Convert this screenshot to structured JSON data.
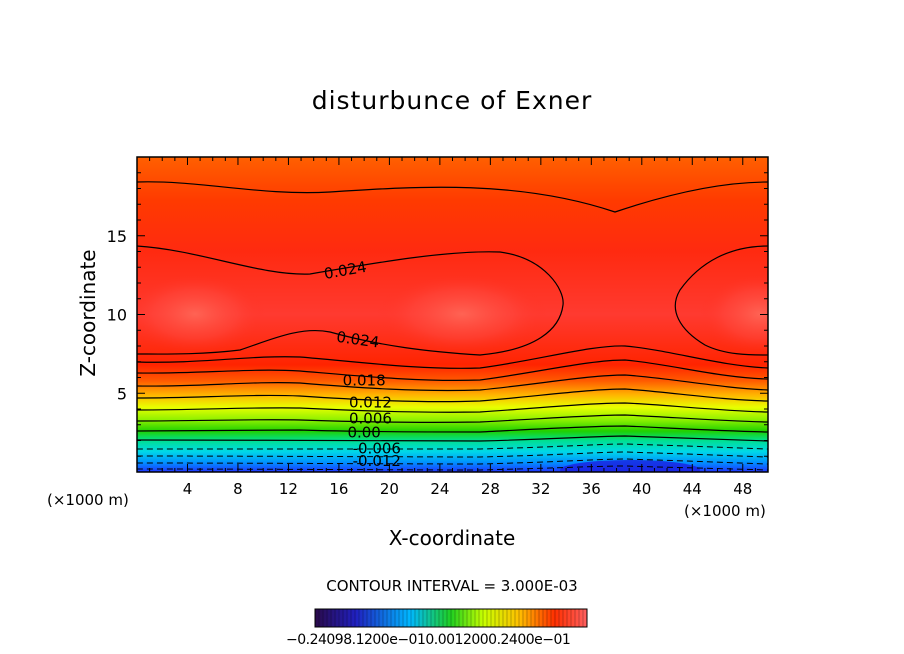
{
  "chart_data": {
    "type": "contour",
    "title": "disturbunce of Exner",
    "xlabel": "X-coordinate",
    "ylabel": "Z-coordinate",
    "x_unit": "(×1000 m)",
    "y_unit": "(×1000 m)",
    "xlim": [
      0,
      50
    ],
    "ylim": [
      0,
      20
    ],
    "x_ticks": [
      4,
      8,
      12,
      16,
      20,
      24,
      28,
      32,
      36,
      40,
      44,
      48
    ],
    "y_ticks": [
      5,
      10,
      15
    ],
    "contour_interval_text": "CONTOUR INTERVAL = 3.000E-03",
    "contour_labels": [
      {
        "text": "0.024",
        "x": 16.5,
        "z": 12.8
      },
      {
        "text": "0.024",
        "x": 17.5,
        "z": 8.4
      },
      {
        "text": "0.018",
        "x": 18.0,
        "z": 5.8
      },
      {
        "text": "0.012",
        "x": 18.5,
        "z": 4.4
      },
      {
        "text": "0.006",
        "x": 18.5,
        "z": 3.4
      },
      {
        "text": "0.00",
        "x": 18.0,
        "z": 2.5
      },
      {
        "text": "-0.006",
        "x": 19.0,
        "z": 1.5
      },
      {
        "text": "-0.012",
        "x": 19.0,
        "z": 0.7
      }
    ],
    "colorbar": {
      "labels_text": "−0.24098.1200e−010.0012000.2400e−01",
      "min": -0.024,
      "max": 0.024
    },
    "colors": {
      "max": "#ff3c3c",
      "high": "#ff1a00",
      "mid": "#b4ff00",
      "zero": "#22c800",
      "low": "#00c8ff",
      "min": "#2030ff"
    }
  }
}
